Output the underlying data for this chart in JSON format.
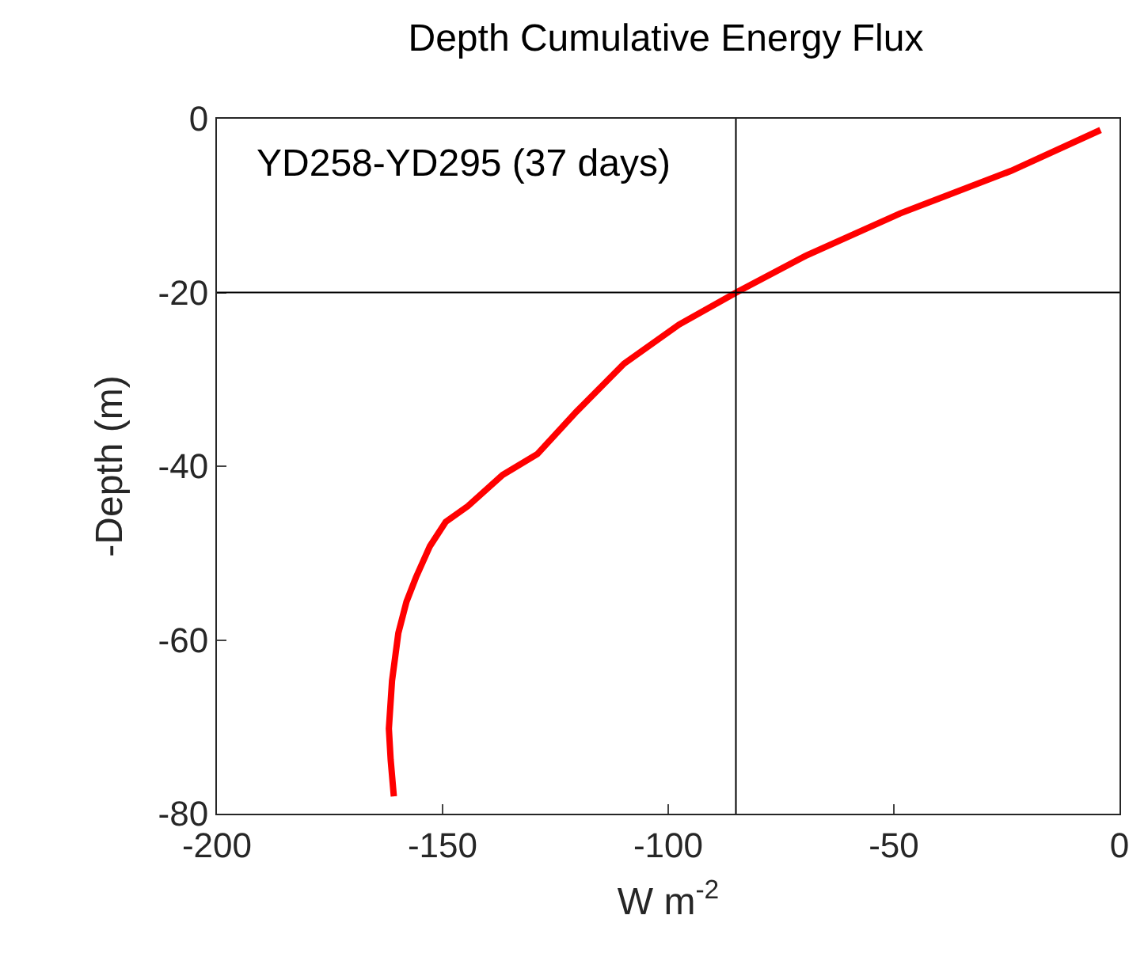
{
  "chart_data": {
    "type": "line",
    "title": "Depth Cumulative Energy Flux",
    "xlabel": "W m$^{-2}$",
    "ylabel": "-Depth (m)",
    "annotations": [
      "YD258-YD295 (37 days)"
    ],
    "x": [
      -4.2,
      -24,
      -48.6,
      -69.6,
      -84.6,
      -97.6,
      -109.8,
      -120.3,
      -129,
      -136.7,
      -144.4,
      -149.3,
      -152.8,
      -155.9,
      -158,
      -159.8,
      -161.2,
      -161.9,
      -161.5,
      -160.8
    ],
    "series": [
      {
        "color": "#ff0000",
        "values": [
          -1.3,
          -6,
          -10.9,
          -15.8,
          -19.9,
          -23.7,
          -28.2,
          -33.7,
          -38.6,
          -41,
          -44.6,
          -46.4,
          -49.2,
          -52.8,
          -55.6,
          -59.2,
          -64.7,
          -70.2,
          -73.8,
          -78
        ]
      }
    ],
    "xlim": [
      -200,
      0
    ],
    "xticks": [
      -200,
      -150,
      -100,
      -50,
      0
    ],
    "ylim": [
      -80,
      0
    ],
    "yticks": [
      -80,
      -60,
      -40,
      -20,
      0
    ],
    "ref_lines": [
      {
        "axis": "x",
        "value": -85,
        "color": "#000000"
      },
      {
        "axis": "y",
        "value": -20,
        "color": "#000000"
      }
    ],
    "marker": "none",
    "line_style": "solid"
  }
}
